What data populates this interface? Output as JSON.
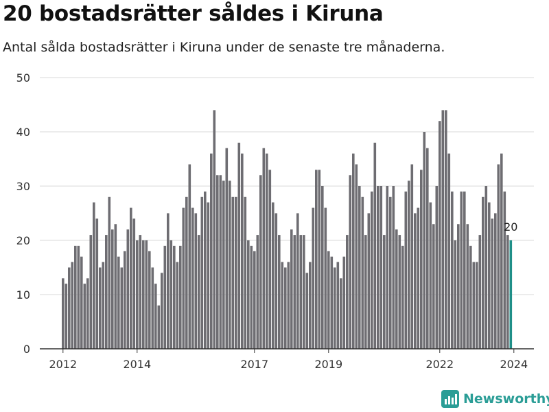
{
  "title": "20 bostadsrätter såldes i Kiruna",
  "subtitle": "Antal sålda bostadsrätter i Kiruna under de senaste tre månaderna.",
  "brand": "Newsworthy",
  "colors": {
    "bar": "#6e6d72",
    "highlight": "#1f8f88",
    "grid": "#d9d9d9",
    "axis": "#333333",
    "brand": "#2a9d96"
  },
  "chart_data": {
    "type": "bar",
    "ylim": [
      0,
      50
    ],
    "yticks": [
      0,
      10,
      20,
      30,
      40,
      50
    ],
    "xticks": [
      {
        "label": "2012",
        "index": 0
      },
      {
        "label": "2014",
        "index": 24
      },
      {
        "label": "2017",
        "index": 62
      },
      {
        "label": "2019",
        "index": 86
      },
      {
        "label": "2022",
        "index": 122
      },
      {
        "label": "2024",
        "index": 146
      }
    ],
    "grid": true,
    "last_value_label": "20",
    "values": [
      13,
      12,
      15,
      16,
      19,
      19,
      17,
      12,
      13,
      21,
      27,
      24,
      15,
      16,
      21,
      28,
      22,
      23,
      17,
      15,
      18,
      22,
      26,
      24,
      20,
      21,
      20,
      20,
      18,
      15,
      12,
      8,
      14,
      19,
      25,
      20,
      19,
      16,
      19,
      26,
      28,
      34,
      26,
      25,
      21,
      28,
      29,
      27,
      36,
      44,
      32,
      32,
      31,
      37,
      31,
      28,
      28,
      38,
      36,
      28,
      20,
      19,
      18,
      21,
      32,
      37,
      36,
      33,
      27,
      25,
      21,
      16,
      15,
      16,
      22,
      21,
      25,
      21,
      21,
      14,
      16,
      26,
      33,
      33,
      30,
      26,
      18,
      17,
      15,
      16,
      13,
      17,
      21,
      32,
      36,
      34,
      30,
      28,
      21,
      25,
      29,
      38,
      30,
      30,
      21,
      30,
      28,
      30,
      22,
      21,
      19,
      29,
      31,
      34,
      25,
      26,
      33,
      40,
      37,
      27,
      23,
      30,
      42,
      44,
      44,
      36,
      29,
      20,
      23,
      29,
      29,
      23,
      19,
      16,
      16,
      21,
      28,
      30,
      27,
      24,
      25,
      34,
      36,
      29,
      21,
      20
    ],
    "highlight_index": 145
  }
}
